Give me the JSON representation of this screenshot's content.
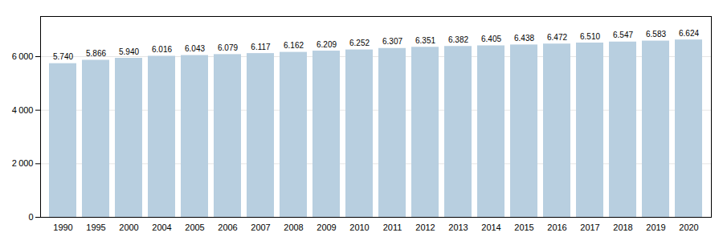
{
  "chart_data": {
    "type": "bar",
    "categories": [
      "1990",
      "1995",
      "2000",
      "2004",
      "2005",
      "2006",
      "2007",
      "2008",
      "2009",
      "2010",
      "2011",
      "2012",
      "2013",
      "2014",
      "2015",
      "2016",
      "2017",
      "2018",
      "2019",
      "2020"
    ],
    "values": [
      5740,
      5866,
      5940,
      6016,
      6043,
      6079,
      6117,
      6162,
      6209,
      6252,
      6307,
      6351,
      6382,
      6405,
      6438,
      6472,
      6510,
      6547,
      6583,
      6624
    ],
    "value_labels": [
      "5.740",
      "5.866",
      "5.940",
      "6.016",
      "6.043",
      "6.079",
      "6.117",
      "6.162",
      "6.209",
      "6.252",
      "6.307",
      "6.351",
      "6.382",
      "6.405",
      "6.438",
      "6.472",
      "6.510",
      "6.547",
      "6.583",
      "6.624"
    ],
    "data_labels": true,
    "color": "#b8cfe0",
    "ylim": [
      0,
      7500
    ],
    "yticks": [
      0,
      {
        "value": 2000,
        "label": "2 000"
      },
      {
        "value": 4000,
        "label": "4 000"
      },
      {
        "value": 6000,
        "label": "6 000"
      }
    ],
    "grid": true
  }
}
